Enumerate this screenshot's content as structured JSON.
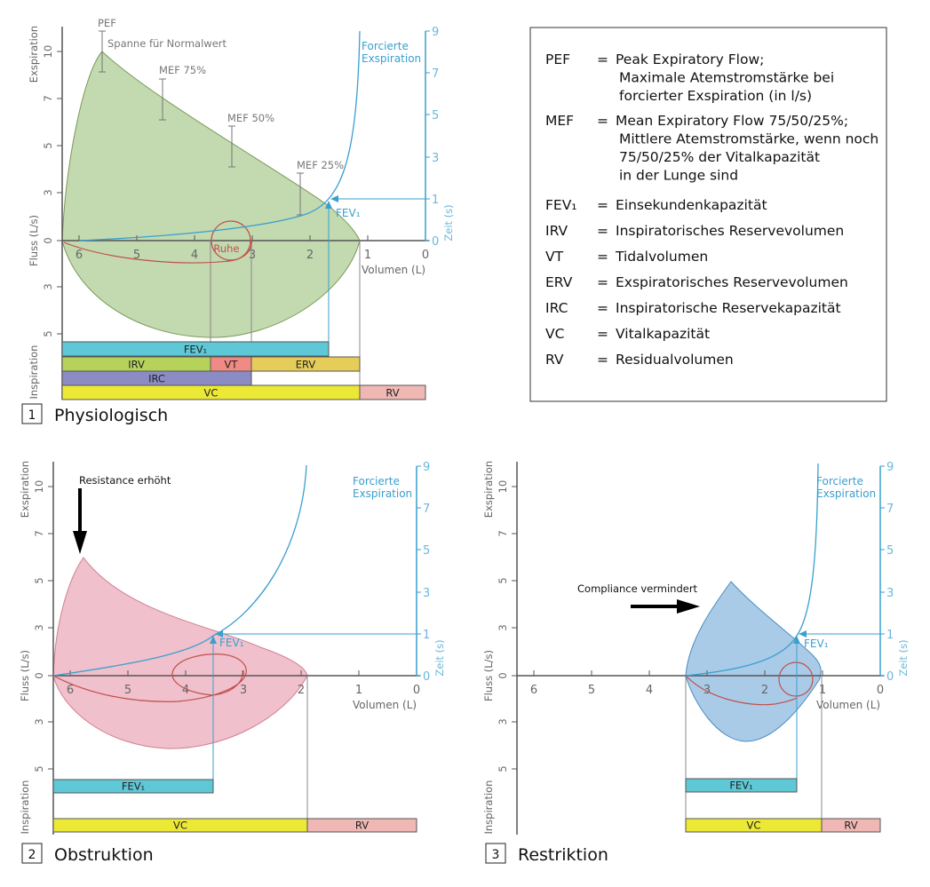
{
  "axes": {
    "flow_label": "Fluss (L/s)",
    "expiration_label": "Exspiration",
    "inspiration_label": "Inspiration",
    "volume_label": "Volumen (L)",
    "time_label": "Zeit (s)",
    "flow_ticks": [
      "10",
      "7",
      "5",
      "3",
      "0",
      "3",
      "5"
    ],
    "volume_ticks": [
      "6",
      "5",
      "4",
      "3",
      "2",
      "1",
      "0"
    ],
    "time_ticks": [
      "9",
      "7",
      "5",
      "3",
      "1",
      "0"
    ]
  },
  "forced_expiration_label": [
    "Forcierte",
    "Exspiration"
  ],
  "fev1_marker_label": "FEV₁",
  "colors": {
    "axis": "#555555",
    "time_axis": "#3a9fcf",
    "forced_curve": "#3a9fcf",
    "rest_curve": "#c0504d",
    "loop_physiological": "#c3d9b0",
    "loop_obstruction": "#f0c0cc",
    "loop_restriction": "#a9cbe8"
  },
  "panels": [
    {
      "number": "1",
      "title": "Physiologisch",
      "annotations": {
        "pef": "PEF",
        "normal_range": "Spanne für Normalwert",
        "mef75": "MEF 75%",
        "mef50": "MEF 50%",
        "mef25": "MEF 25%",
        "rest": "Ruhe"
      },
      "bars": [
        {
          "label": "FEV₁",
          "color": "#5ec8d6"
        },
        {
          "label": "IRV",
          "color": "#b5d35a"
        },
        {
          "label": "VT",
          "color": "#f08a84"
        },
        {
          "label": "ERV",
          "color": "#e6cd5a"
        },
        {
          "label": "IRC",
          "color": "#8c8cc4"
        },
        {
          "label": "VC",
          "color": "#ece836"
        },
        {
          "label": "RV",
          "color": "#f0b8b4"
        }
      ]
    },
    {
      "number": "2",
      "title": "Obstruktion",
      "annotations": {
        "arrow_label": "Resistance erhöht"
      },
      "bars": [
        {
          "label": "FEV₁",
          "color": "#5ec8d6"
        },
        {
          "label": "VC",
          "color": "#ece836"
        },
        {
          "label": "RV",
          "color": "#f0b8b4"
        }
      ]
    },
    {
      "number": "3",
      "title": "Restriktion",
      "annotations": {
        "arrow_label": "Compliance vermindert"
      },
      "bars": [
        {
          "label": "FEV₁",
          "color": "#5ec8d6"
        },
        {
          "label": "VC",
          "color": "#ece836"
        },
        {
          "label": "RV",
          "color": "#f0b8b4"
        }
      ]
    }
  ],
  "legend": {
    "equals": "=",
    "entries": [
      {
        "term": "PEF",
        "definition": [
          "Peak Expiratory Flow;",
          "Maximale Atemstromstärke bei",
          "forcierter Exspiration (in l/s)"
        ]
      },
      {
        "term": "MEF",
        "definition": [
          "Mean Expiratory Flow 75/50/25%;",
          "Mittlere Atemstromstärke, wenn noch",
          "75/50/25% der Vitalkapazität",
          "in der Lunge sind"
        ]
      },
      {
        "term": "FEV₁",
        "definition": [
          "Einsekundenkapazität"
        ]
      },
      {
        "term": "IRV",
        "definition": [
          "Inspiratorisches Reservevolumen"
        ]
      },
      {
        "term": "VT",
        "definition": [
          "Tidalvolumen"
        ]
      },
      {
        "term": "ERV",
        "definition": [
          "Exspiratorisches Reservevolumen"
        ]
      },
      {
        "term": "IRC",
        "definition": [
          "Inspiratorische Reservekapazität"
        ]
      },
      {
        "term": "VC",
        "definition": [
          "Vitalkapazität"
        ]
      },
      {
        "term": "RV",
        "definition": [
          "Residualvolumen"
        ]
      }
    ]
  }
}
